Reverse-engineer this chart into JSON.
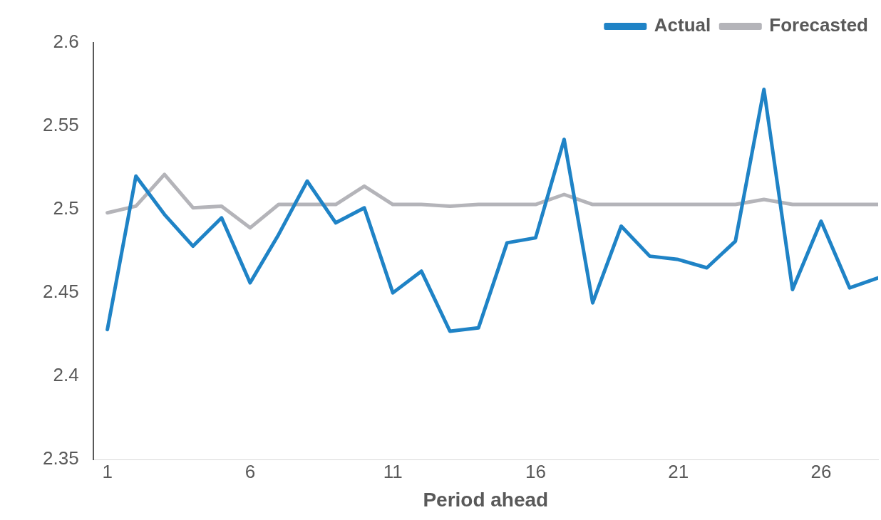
{
  "chart_data": {
    "type": "line",
    "xlabel": "Period ahead",
    "x": [
      1,
      2,
      3,
      4,
      5,
      6,
      7,
      8,
      9,
      10,
      11,
      12,
      13,
      14,
      15,
      16,
      17,
      18,
      19,
      20,
      21,
      22,
      23,
      24,
      25,
      26,
      27,
      28
    ],
    "series": [
      {
        "name": "Actual",
        "color": "#1f83c6",
        "values": [
          2.428,
          2.52,
          2.497,
          2.478,
          2.495,
          2.456,
          2.485,
          2.517,
          2.492,
          2.501,
          2.45,
          2.463,
          2.427,
          2.429,
          2.48,
          2.483,
          2.542,
          2.444,
          2.49,
          2.472,
          2.47,
          2.465,
          2.481,
          2.572,
          2.452,
          2.493,
          2.453,
          2.459
        ]
      },
      {
        "name": "Forecasted",
        "color": "#b4b4b9",
        "values": [
          2.498,
          2.502,
          2.521,
          2.501,
          2.502,
          2.489,
          2.503,
          2.503,
          2.503,
          2.514,
          2.503,
          2.503,
          2.502,
          2.503,
          2.503,
          2.503,
          2.509,
          2.503,
          2.503,
          2.503,
          2.503,
          2.503,
          2.503,
          2.506,
          2.503,
          2.503,
          2.503,
          2.503
        ]
      }
    ],
    "xlim": [
      0.5,
      28
    ],
    "xticks": [
      1,
      6,
      11,
      16,
      21,
      26
    ],
    "ylim": [
      2.35,
      2.6
    ],
    "yticks": [
      2.35,
      2.4,
      2.45,
      2.5,
      2.55,
      2.6
    ],
    "grid": false,
    "legend": "top right",
    "marker": "none",
    "line_style": "solid"
  }
}
